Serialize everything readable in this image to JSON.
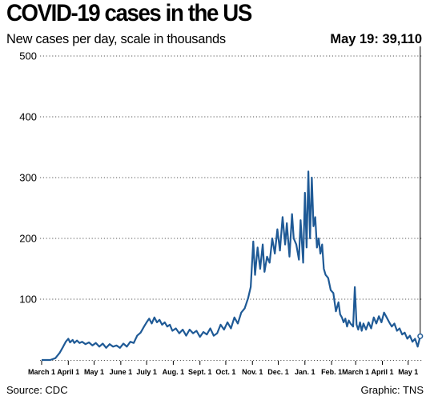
{
  "title": "COVID-19 cases in the US",
  "subtitle": "New cases per day, scale in thousands",
  "callout": "May 19: 39,110",
  "source": "Source: CDC",
  "credit": "Graphic: TNS",
  "colors": {
    "line": "#1f5a96",
    "grid": "#555555",
    "text": "#000000"
  },
  "chart_data": {
    "type": "line",
    "title": "COVID-19 cases in the US",
    "subtitle": "New cases per day, scale in thousands",
    "ylabel": "",
    "xlabel": "",
    "ylim": [
      0,
      500
    ],
    "y_ticks": [
      100,
      200,
      300,
      400,
      500
    ],
    "x_ticks": [
      {
        "label": "March 1",
        "x": 0
      },
      {
        "label": "April 1",
        "x": 31
      },
      {
        "label": "May 1",
        "x": 61
      },
      {
        "label": "June 1",
        "x": 92
      },
      {
        "label": "July 1",
        "x": 122
      },
      {
        "label": "Aug. 1",
        "x": 153
      },
      {
        "label": "Sept. 1",
        "x": 184
      },
      {
        "label": "Oct. 1",
        "x": 214
      },
      {
        "label": "Nov. 1",
        "x": 245
      },
      {
        "label": "Dec. 1",
        "x": 275
      },
      {
        "label": "Jan. 1",
        "x": 306
      },
      {
        "label": "Feb. 1",
        "x": 337
      },
      {
        "label": "March 1",
        "x": 365
      },
      {
        "label": "April 1",
        "x": 396
      },
      {
        "label": "May 1",
        "x": 426
      }
    ],
    "x_unit": "days since March 1, 2020",
    "grid": true,
    "series": [
      {
        "name": "New cases per day (thousands)",
        "x": [
          0,
          10,
          16,
          21,
          25,
          28,
          31,
          33,
          36,
          38,
          41,
          44,
          47,
          51,
          55,
          59,
          63,
          67,
          71,
          75,
          79,
          83,
          87,
          91,
          95,
          99,
          103,
          107,
          111,
          115,
          119,
          122,
          125,
          128,
          131,
          134,
          137,
          140,
          143,
          146,
          149,
          152,
          156,
          160,
          164,
          168,
          172,
          176,
          180,
          184,
          188,
          192,
          196,
          200,
          204,
          208,
          212,
          216,
          220,
          224,
          228,
          232,
          236,
          240,
          243,
          246,
          248,
          251,
          254,
          257,
          259,
          262,
          265,
          268,
          271,
          274,
          277,
          280,
          283,
          285,
          288,
          291,
          293,
          296,
          299,
          301,
          304,
          306,
          308,
          310,
          312,
          314,
          316,
          318,
          320,
          322,
          324,
          326,
          328,
          330,
          333,
          336,
          339,
          342,
          345,
          347,
          349,
          351,
          353,
          355,
          357,
          359,
          362,
          364,
          366,
          368,
          370,
          372,
          374,
          377,
          380,
          383,
          386,
          389,
          392,
          395,
          398,
          401,
          404,
          407,
          410,
          413,
          416,
          419,
          422,
          425,
          428,
          431,
          434,
          437,
          440
        ],
        "values": [
          0,
          0,
          3,
          12,
          22,
          30,
          35,
          29,
          33,
          28,
          32,
          28,
          30,
          26,
          29,
          24,
          28,
          22,
          27,
          20,
          26,
          22,
          24,
          20,
          27,
          22,
          30,
          28,
          40,
          45,
          55,
          62,
          68,
          60,
          70,
          62,
          66,
          58,
          62,
          55,
          58,
          48,
          52,
          44,
          50,
          40,
          50,
          44,
          48,
          38,
          46,
          42,
          52,
          40,
          44,
          58,
          50,
          62,
          52,
          70,
          60,
          78,
          85,
          102,
          120,
          195,
          140,
          185,
          150,
          190,
          145,
          170,
          160,
          200,
          175,
          215,
          180,
          235,
          190,
          225,
          170,
          240,
          200,
          190,
          165,
          230,
          160,
          275,
          185,
          310,
          200,
          300,
          220,
          235,
          185,
          200,
          175,
          190,
          150,
          140,
          135,
          115,
          110,
          80,
          95,
          75,
          70,
          62,
          68,
          55,
          65,
          60,
          55,
          120,
          58,
          50,
          62,
          48,
          60,
          50,
          62,
          52,
          70,
          60,
          72,
          62,
          78,
          70,
          62,
          55,
          60,
          48,
          52,
          42,
          45,
          35,
          40,
          30,
          35,
          22,
          39.11
        ]
      }
    ]
  }
}
